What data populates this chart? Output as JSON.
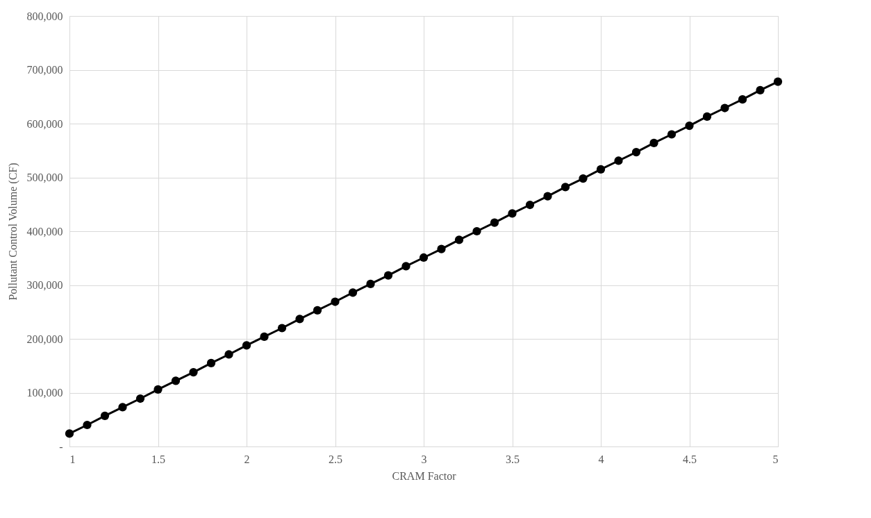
{
  "chart_data": {
    "type": "line",
    "xlabel": "CRAM Factor",
    "ylabel": "Pollutant Control Volume (CF)",
    "x": [
      1,
      1.1,
      1.2,
      1.3,
      1.4,
      1.5,
      1.6,
      1.7,
      1.8,
      1.9,
      2,
      2.1,
      2.2,
      2.3,
      2.4,
      2.5,
      2.6,
      2.7,
      2.8,
      2.9,
      3,
      3.1,
      3.2,
      3.3,
      3.4,
      3.5,
      3.6,
      3.7,
      3.8,
      3.9,
      4,
      4.1,
      4.2,
      4.3,
      4.4,
      4.5,
      4.6,
      4.7,
      4.8,
      4.9,
      5
    ],
    "series": [
      {
        "color": "#000000",
        "values": [
          24000,
          40000,
          57000,
          73000,
          89000,
          106000,
          122000,
          138000,
          155000,
          171000,
          188000,
          204000,
          220000,
          237000,
          253000,
          269000,
          286000,
          302000,
          318000,
          335000,
          351000,
          367000,
          384000,
          400000,
          416000,
          433000,
          449000,
          465000,
          482000,
          498000,
          515000,
          531000,
          547000,
          564000,
          580000,
          596000,
          613000,
          629000,
          645000,
          662000,
          678000
        ]
      }
    ],
    "xlim": [
      1,
      5
    ],
    "xticks": [
      1,
      1.5,
      2,
      2.5,
      3,
      3.5,
      4,
      4.5,
      5
    ],
    "ylim": [
      0,
      800000
    ],
    "yticks": [
      {
        "value": 0,
        "label": "-"
      },
      {
        "value": 100000,
        "label": "100,000"
      },
      {
        "value": 200000,
        "label": "200,000"
      },
      {
        "value": 300000,
        "label": "300,000"
      },
      {
        "value": 400000,
        "label": "400,000"
      },
      {
        "value": 500000,
        "label": "500,000"
      },
      {
        "value": 600000,
        "label": "600,000"
      },
      {
        "value": 700000,
        "label": "700,000"
      },
      {
        "value": 800000,
        "label": "800,000"
      }
    ],
    "grid": true,
    "legend": false,
    "marker": "circle",
    "line_style": "solid"
  }
}
